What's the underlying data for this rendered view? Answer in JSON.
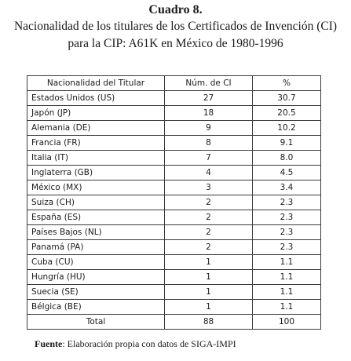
{
  "title": {
    "heading": "Cuadro 8.",
    "line1": "Nacionalidad de los titulares de los Certificados de Invención (CI)",
    "line2": "para la CIP: A61K en México de 1980-1996"
  },
  "table": {
    "headers": [
      "Nacionalidad del Titular",
      "Núm. de CI",
      "%"
    ],
    "rows": [
      {
        "country": "Estados Unidos (US)",
        "count": "27",
        "pct": "30.7"
      },
      {
        "country": "Japón (JP)",
        "count": "18",
        "pct": "20.5"
      },
      {
        "country": "Alemania (DE)",
        "count": "9",
        "pct": "10.2"
      },
      {
        "country": "Francia (FR)",
        "count": "8",
        "pct": "9.1"
      },
      {
        "country": "Italia (IT)",
        "count": "7",
        "pct": "8.0"
      },
      {
        "country": "Inglaterra (GB)",
        "count": "4",
        "pct": "4.5"
      },
      {
        "country": "México (MX)",
        "count": "3",
        "pct": "3.4"
      },
      {
        "country": "Suiza (CH)",
        "count": "2",
        "pct": "2.3"
      },
      {
        "country": "España (ES)",
        "count": "2",
        "pct": "2.3"
      },
      {
        "country": "Países Bajos (NL)",
        "count": "2",
        "pct": "2.3"
      },
      {
        "country": "Panamá (PA)",
        "count": "2",
        "pct": "2.3"
      },
      {
        "country": "Cuba (CU)",
        "count": "1",
        "pct": "1.1"
      },
      {
        "country": "Hungría (HU)",
        "count": "1",
        "pct": "1.1"
      },
      {
        "country": "Suecia (SE)",
        "count": "1",
        "pct": "1.1"
      },
      {
        "country": "Bélgica (BE)",
        "count": "1",
        "pct": "1.1"
      }
    ],
    "total": {
      "label": "Total",
      "count": "88",
      "pct": "100"
    }
  },
  "source": {
    "label": "Fuente",
    "text": ": Elaboración propia con datos de SIGA-IMPI"
  }
}
